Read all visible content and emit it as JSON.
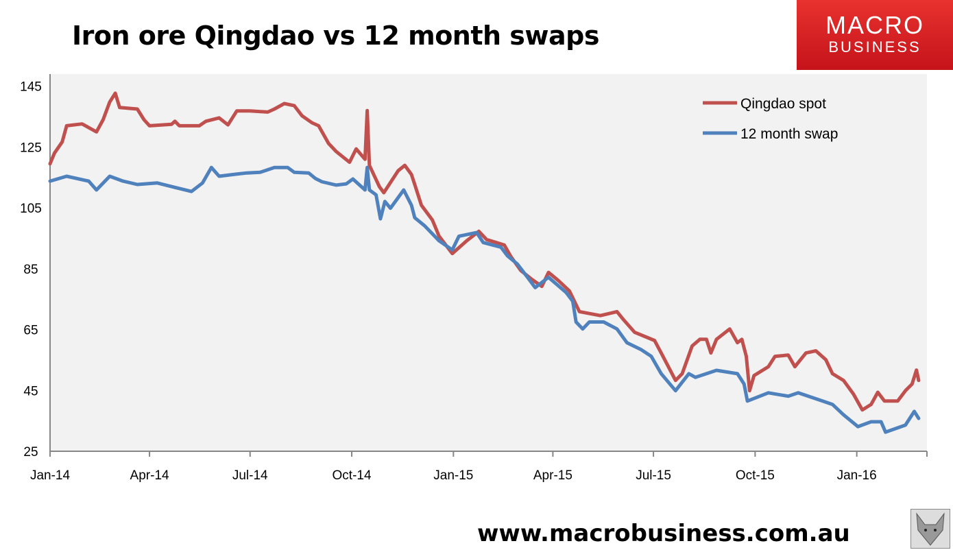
{
  "header": {
    "title": "Iron ore Qingdao vs 12 month swaps",
    "logo_line1": "MACRO",
    "logo_line2": "BUSINESS",
    "url": "www.macrobusiness.com.au"
  },
  "colors": {
    "qingdao": "#c0504d",
    "swap": "#4f81bd",
    "plot_bg": "#f2f2f2",
    "logo": "#d71f24"
  },
  "chart_data": {
    "type": "line",
    "title": "Iron ore Qingdao vs 12 month swaps",
    "xlabel": "",
    "ylabel": "",
    "ylim": [
      25,
      149
    ],
    "yticks": [
      25,
      45,
      65,
      85,
      105,
      125,
      145
    ],
    "xticks": [
      {
        "date": "2014-01-01",
        "label": "Jan-14"
      },
      {
        "date": "2014-04-01",
        "label": "Apr-14"
      },
      {
        "date": "2014-07-01",
        "label": "Jul-14"
      },
      {
        "date": "2014-10-01",
        "label": "Oct-14"
      },
      {
        "date": "2015-01-01",
        "label": "Jan-15"
      },
      {
        "date": "2015-04-01",
        "label": "Apr-15"
      },
      {
        "date": "2015-07-01",
        "label": "Jul-15"
      },
      {
        "date": "2015-10-01",
        "label": "Oct-15"
      },
      {
        "date": "2016-01-01",
        "label": "Jan-16"
      }
    ],
    "xlim": [
      "2014-01-01",
      "2016-03-10"
    ],
    "grid": false,
    "legend": "top-right",
    "series": [
      {
        "name": "Qingdao spot",
        "color": "#c0504d",
        "points": [
          [
            "2014-01-01",
            119.5
          ],
          [
            "2014-01-05",
            123
          ],
          [
            "2014-01-12",
            126.7
          ],
          [
            "2014-01-16",
            132
          ],
          [
            "2014-01-30",
            132.6
          ],
          [
            "2014-02-12",
            130
          ],
          [
            "2014-02-18",
            134
          ],
          [
            "2014-02-24",
            139.8
          ],
          [
            "2014-03-01",
            142.7
          ],
          [
            "2014-03-05",
            138
          ],
          [
            "2014-03-21",
            137.5
          ],
          [
            "2014-03-27",
            134
          ],
          [
            "2014-04-01",
            132
          ],
          [
            "2014-04-21",
            132.5
          ],
          [
            "2014-04-24",
            133.5
          ],
          [
            "2014-04-28",
            132
          ],
          [
            "2014-05-16",
            132
          ],
          [
            "2014-05-22",
            133.5
          ],
          [
            "2014-06-03",
            134.6
          ],
          [
            "2014-06-11",
            132.3
          ],
          [
            "2014-06-19",
            136.9
          ],
          [
            "2014-07-01",
            136.9
          ],
          [
            "2014-07-17",
            136.5
          ],
          [
            "2014-07-23",
            137.5
          ],
          [
            "2014-08-01",
            139.3
          ],
          [
            "2014-08-10",
            138.6
          ],
          [
            "2014-08-17",
            135.3
          ],
          [
            "2014-08-26",
            133
          ],
          [
            "2014-09-01",
            132
          ],
          [
            "2014-09-10",
            126.2
          ],
          [
            "2014-09-17",
            123.5
          ],
          [
            "2014-09-29",
            120
          ],
          [
            "2014-10-05",
            124.4
          ],
          [
            "2014-10-13",
            121
          ],
          [
            "2014-10-15",
            137
          ],
          [
            "2014-10-17",
            119
          ],
          [
            "2014-10-26",
            112
          ],
          [
            "2014-10-30",
            110
          ],
          [
            "2014-11-12",
            117.2
          ],
          [
            "2014-11-18",
            119
          ],
          [
            "2014-11-24",
            116
          ],
          [
            "2014-11-27",
            112.7
          ],
          [
            "2014-12-03",
            105.9
          ],
          [
            "2014-12-13",
            101
          ],
          [
            "2014-12-19",
            95.7
          ],
          [
            "2014-12-31",
            90
          ],
          [
            "2015-01-13",
            94.2
          ],
          [
            "2015-01-24",
            97.3
          ],
          [
            "2015-01-31",
            94.6
          ],
          [
            "2015-02-16",
            92.8
          ],
          [
            "2015-02-22",
            89
          ],
          [
            "2015-03-03",
            84.4
          ],
          [
            "2015-03-13",
            81.5
          ],
          [
            "2015-03-22",
            79.2
          ],
          [
            "2015-03-28",
            83.8
          ],
          [
            "2015-04-06",
            81.1
          ],
          [
            "2015-04-16",
            77.7
          ],
          [
            "2015-04-25",
            70.9
          ],
          [
            "2015-05-14",
            69.6
          ],
          [
            "2015-05-29",
            70.9
          ],
          [
            "2015-06-04",
            68.2
          ],
          [
            "2015-06-14",
            64.1
          ],
          [
            "2015-07-02",
            61.4
          ],
          [
            "2015-07-08",
            57.3
          ],
          [
            "2015-07-21",
            48.3
          ],
          [
            "2015-07-27",
            50.5
          ],
          [
            "2015-08-05",
            59.6
          ],
          [
            "2015-08-12",
            61.8
          ],
          [
            "2015-08-18",
            61.8
          ],
          [
            "2015-08-22",
            57.3
          ],
          [
            "2015-08-27",
            61.8
          ],
          [
            "2015-09-08",
            65.2
          ],
          [
            "2015-09-15",
            60.7
          ],
          [
            "2015-09-19",
            61.8
          ],
          [
            "2015-09-23",
            56.2
          ],
          [
            "2015-09-26",
            44.9
          ],
          [
            "2015-09-30",
            49.9
          ],
          [
            "2015-10-13",
            52.8
          ],
          [
            "2015-10-19",
            56.2
          ],
          [
            "2015-10-31",
            56.6
          ],
          [
            "2015-11-06",
            52.8
          ],
          [
            "2015-11-16",
            57.3
          ],
          [
            "2015-11-25",
            58
          ],
          [
            "2015-12-04",
            55.1
          ],
          [
            "2015-12-10",
            50.5
          ],
          [
            "2015-12-20",
            48.3
          ],
          [
            "2015-12-29",
            43.8
          ],
          [
            "2016-01-06",
            38.6
          ],
          [
            "2016-01-14",
            40.4
          ],
          [
            "2016-01-20",
            44.4
          ],
          [
            "2016-01-26",
            41.5
          ],
          [
            "2016-02-07",
            41.5
          ],
          [
            "2016-02-14",
            44.9
          ],
          [
            "2016-02-20",
            47.1
          ],
          [
            "2016-02-24",
            51.7
          ],
          [
            "2016-02-26",
            48.3
          ]
        ]
      },
      {
        "name": "12 month swap",
        "color": "#4f81bd",
        "points": [
          [
            "2014-01-01",
            113.8
          ],
          [
            "2014-01-16",
            115.4
          ],
          [
            "2014-02-05",
            113.8
          ],
          [
            "2014-02-12",
            110.9
          ],
          [
            "2014-02-24",
            115.4
          ],
          [
            "2014-03-08",
            113.8
          ],
          [
            "2014-03-21",
            112.7
          ],
          [
            "2014-04-08",
            113.2
          ],
          [
            "2014-04-21",
            112
          ],
          [
            "2014-05-09",
            110.4
          ],
          [
            "2014-05-19",
            113.2
          ],
          [
            "2014-05-27",
            118.3
          ],
          [
            "2014-06-03",
            115.4
          ],
          [
            "2014-06-16",
            116
          ],
          [
            "2014-06-28",
            116.5
          ],
          [
            "2014-07-10",
            116.7
          ],
          [
            "2014-07-23",
            118.3
          ],
          [
            "2014-08-04",
            118.3
          ],
          [
            "2014-08-10",
            116.7
          ],
          [
            "2014-08-23",
            116.5
          ],
          [
            "2014-08-29",
            114.7
          ],
          [
            "2014-09-04",
            113.6
          ],
          [
            "2014-09-17",
            112.5
          ],
          [
            "2014-09-26",
            112.9
          ],
          [
            "2014-10-02",
            114.5
          ],
          [
            "2014-10-13",
            110.9
          ],
          [
            "2014-10-15",
            118.3
          ],
          [
            "2014-10-17",
            110.9
          ],
          [
            "2014-10-23",
            109.3
          ],
          [
            "2014-10-27",
            101.4
          ],
          [
            "2014-10-31",
            107.1
          ],
          [
            "2014-11-05",
            104.9
          ],
          [
            "2014-11-17",
            110.9
          ],
          [
            "2014-11-24",
            105.9
          ],
          [
            "2014-11-27",
            101.8
          ],
          [
            "2014-12-06",
            99.1
          ],
          [
            "2014-12-19",
            94.2
          ],
          [
            "2014-12-31",
            91.2
          ],
          [
            "2015-01-06",
            95.7
          ],
          [
            "2015-01-22",
            96.9
          ],
          [
            "2015-01-28",
            93.6
          ],
          [
            "2015-02-13",
            92.1
          ],
          [
            "2015-02-19",
            89.2
          ],
          [
            "2015-02-28",
            86.5
          ],
          [
            "2015-03-09",
            82.2
          ],
          [
            "2015-03-16",
            78.8
          ],
          [
            "2015-03-28",
            82.2
          ],
          [
            "2015-04-13",
            77.2
          ],
          [
            "2015-04-19",
            74.3
          ],
          [
            "2015-04-22",
            67.5
          ],
          [
            "2015-04-28",
            65.2
          ],
          [
            "2015-05-04",
            67.5
          ],
          [
            "2015-05-17",
            67.5
          ],
          [
            "2015-05-29",
            65.2
          ],
          [
            "2015-06-07",
            60.7
          ],
          [
            "2015-06-20",
            58.4
          ],
          [
            "2015-06-29",
            56.2
          ],
          [
            "2015-07-08",
            50.5
          ],
          [
            "2015-07-21",
            44.9
          ],
          [
            "2015-08-02",
            50.5
          ],
          [
            "2015-08-08",
            49.3
          ],
          [
            "2015-08-18",
            50.5
          ],
          [
            "2015-08-27",
            51.6
          ],
          [
            "2015-09-15",
            50.5
          ],
          [
            "2015-09-21",
            47.1
          ],
          [
            "2015-09-24",
            41.5
          ],
          [
            "2015-10-13",
            44.2
          ],
          [
            "2015-10-31",
            43.1
          ],
          [
            "2015-11-09",
            44.2
          ],
          [
            "2015-12-01",
            41.5
          ],
          [
            "2015-12-10",
            40.4
          ],
          [
            "2015-12-20",
            37
          ],
          [
            "2016-01-02",
            33.1
          ],
          [
            "2016-01-14",
            34.7
          ],
          [
            "2016-01-23",
            34.7
          ],
          [
            "2016-01-27",
            31.3
          ],
          [
            "2016-02-14",
            33.6
          ],
          [
            "2016-02-22",
            38.1
          ],
          [
            "2016-02-26",
            35.8
          ]
        ]
      }
    ]
  }
}
